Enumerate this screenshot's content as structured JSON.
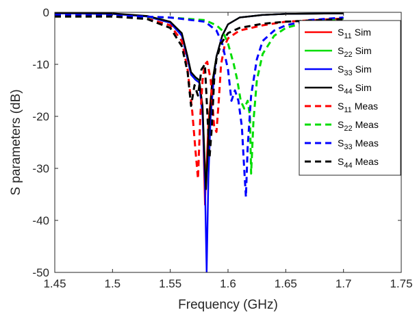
{
  "chart_data": {
    "type": "line",
    "xlabel": "Frequency (GHz)",
    "ylabel": "S parameters (dB)",
    "xlim": [
      1.45,
      1.75
    ],
    "ylim": [
      -50,
      0
    ],
    "xticks": [
      "1.45",
      "1.5",
      "1.55",
      "1.6",
      "1.65",
      "1.7",
      "1.75"
    ],
    "yticks": [
      "0",
      "-10",
      "-20",
      "-30",
      "-40",
      "-50"
    ],
    "grid": false,
    "legend_position": "top-right",
    "series": [
      {
        "sub": "11",
        "suffix": "Sim",
        "color": "#ff0000",
        "dash": "solid",
        "x": [
          1.45,
          1.5,
          1.53,
          1.55,
          1.56,
          1.565,
          1.568,
          1.572,
          1.575,
          1.578,
          1.58,
          1.5815,
          1.583,
          1.586,
          1.59,
          1.595,
          1.6,
          1.61,
          1.63,
          1.65,
          1.7
        ],
        "y": [
          -0.2,
          -0.3,
          -0.8,
          -2.0,
          -4.5,
          -9.0,
          -12.0,
          -12.8,
          -13.0,
          -19.0,
          -37.0,
          -29.0,
          -21.0,
          -14.0,
          -8.5,
          -4.5,
          -2.3,
          -1.0,
          -0.5,
          -0.3,
          -0.2
        ]
      },
      {
        "sub": "22",
        "suffix": "Sim",
        "color": "#00dd00",
        "dash": "solid",
        "x": [
          1.45,
          1.5,
          1.53,
          1.55,
          1.56,
          1.565,
          1.568,
          1.572,
          1.575,
          1.578,
          1.5805,
          1.582,
          1.5835,
          1.586,
          1.59,
          1.595,
          1.6,
          1.61,
          1.63,
          1.65,
          1.7
        ],
        "y": [
          -0.2,
          -0.3,
          -0.8,
          -2.0,
          -4.5,
          -9.0,
          -12.0,
          -12.8,
          -13.0,
          -19.0,
          -32.0,
          -30.0,
          -22.0,
          -14.0,
          -8.5,
          -4.5,
          -2.3,
          -1.0,
          -0.5,
          -0.3,
          -0.2
        ]
      },
      {
        "sub": "33",
        "suffix": "Sim",
        "color": "#0000ff",
        "dash": "solid",
        "x": [
          1.45,
          1.5,
          1.53,
          1.55,
          1.56,
          1.565,
          1.568,
          1.572,
          1.575,
          1.578,
          1.58,
          1.5815,
          1.583,
          1.585,
          1.588,
          1.59,
          1.595,
          1.6,
          1.61,
          1.63,
          1.65,
          1.7
        ],
        "y": [
          -0.2,
          -0.3,
          -0.8,
          -2.0,
          -4.5,
          -9.0,
          -12.0,
          -13.0,
          -13.5,
          -20.0,
          -33.0,
          -50.0,
          -32.0,
          -20.0,
          -12.0,
          -8.5,
          -4.5,
          -2.3,
          -1.0,
          -0.5,
          -0.3,
          -0.2
        ]
      },
      {
        "sub": "44",
        "suffix": "Sim",
        "color": "#000000",
        "dash": "solid",
        "x": [
          1.45,
          1.5,
          1.53,
          1.55,
          1.56,
          1.565,
          1.568,
          1.572,
          1.575,
          1.578,
          1.58,
          1.581,
          1.583,
          1.586,
          1.59,
          1.595,
          1.6,
          1.61,
          1.63,
          1.65,
          1.7
        ],
        "y": [
          -0.1,
          -0.2,
          -0.7,
          -1.8,
          -4.0,
          -8.5,
          -11.5,
          -12.5,
          -13.0,
          -18.0,
          -30.0,
          -34.0,
          -24.0,
          -14.0,
          -8.5,
          -4.5,
          -2.3,
          -1.0,
          -0.5,
          -0.3,
          -0.2
        ]
      },
      {
        "sub": "11",
        "suffix": "Meas",
        "color": "#ff0000",
        "dash": "dashed",
        "x": [
          1.45,
          1.5,
          1.53,
          1.55,
          1.56,
          1.565,
          1.569,
          1.572,
          1.574,
          1.576,
          1.578,
          1.58,
          1.582,
          1.585,
          1.588,
          1.59,
          1.592,
          1.594,
          1.597,
          1.6,
          1.61,
          1.63,
          1.65,
          1.7
        ],
        "y": [
          -0.8,
          -0.8,
          -1.2,
          -2.5,
          -5.5,
          -11.0,
          -19.0,
          -27.0,
          -32.0,
          -20.0,
          -13.0,
          -10.0,
          -9.5,
          -13.0,
          -22.0,
          -23.0,
          -17.0,
          -10.0,
          -6.5,
          -5.0,
          -3.5,
          -2.5,
          -1.8,
          -1.2
        ]
      },
      {
        "sub": "22",
        "suffix": "Meas",
        "color": "#00dd00",
        "dash": "dashed",
        "x": [
          1.45,
          1.5,
          1.55,
          1.58,
          1.59,
          1.595,
          1.6,
          1.605,
          1.608,
          1.611,
          1.614,
          1.617,
          1.619,
          1.62,
          1.622,
          1.625,
          1.63,
          1.64,
          1.65,
          1.67,
          1.7
        ],
        "y": [
          -0.8,
          -0.8,
          -1.0,
          -1.5,
          -2.5,
          -3.5,
          -6.0,
          -10.0,
          -13.0,
          -17.0,
          -18.5,
          -17.0,
          -20.0,
          -31.0,
          -21.0,
          -13.0,
          -8.0,
          -4.5,
          -3.0,
          -1.8,
          -1.2
        ]
      },
      {
        "sub": "33",
        "suffix": "Meas",
        "color": "#0000ff",
        "dash": "dashed",
        "x": [
          1.45,
          1.5,
          1.55,
          1.58,
          1.59,
          1.595,
          1.6,
          1.603,
          1.606,
          1.609,
          1.612,
          1.614,
          1.6155,
          1.617,
          1.62,
          1.625,
          1.63,
          1.64,
          1.65,
          1.67,
          1.7
        ],
        "y": [
          -0.5,
          -0.6,
          -1.0,
          -1.8,
          -3.5,
          -6.0,
          -11.0,
          -17.0,
          -15.0,
          -17.0,
          -22.0,
          -30.0,
          -35.5,
          -26.0,
          -16.0,
          -9.0,
          -5.5,
          -3.5,
          -2.5,
          -1.5,
          -1.0
        ]
      },
      {
        "sub": "44",
        "suffix": "Meas",
        "color": "#000000",
        "dash": "dashed",
        "x": [
          1.45,
          1.5,
          1.53,
          1.55,
          1.56,
          1.565,
          1.568,
          1.571,
          1.574,
          1.577,
          1.58,
          1.582,
          1.584,
          1.586,
          1.588,
          1.59,
          1.594,
          1.6,
          1.61,
          1.63,
          1.65,
          1.7
        ],
        "y": [
          -0.8,
          -0.8,
          -1.3,
          -3.0,
          -6.5,
          -11.5,
          -18.0,
          -14.0,
          -16.0,
          -11.0,
          -10.0,
          -19.0,
          -28.0,
          -22.0,
          -13.0,
          -9.0,
          -6.0,
          -4.0,
          -3.0,
          -2.2,
          -1.8,
          -1.3
        ]
      }
    ]
  }
}
